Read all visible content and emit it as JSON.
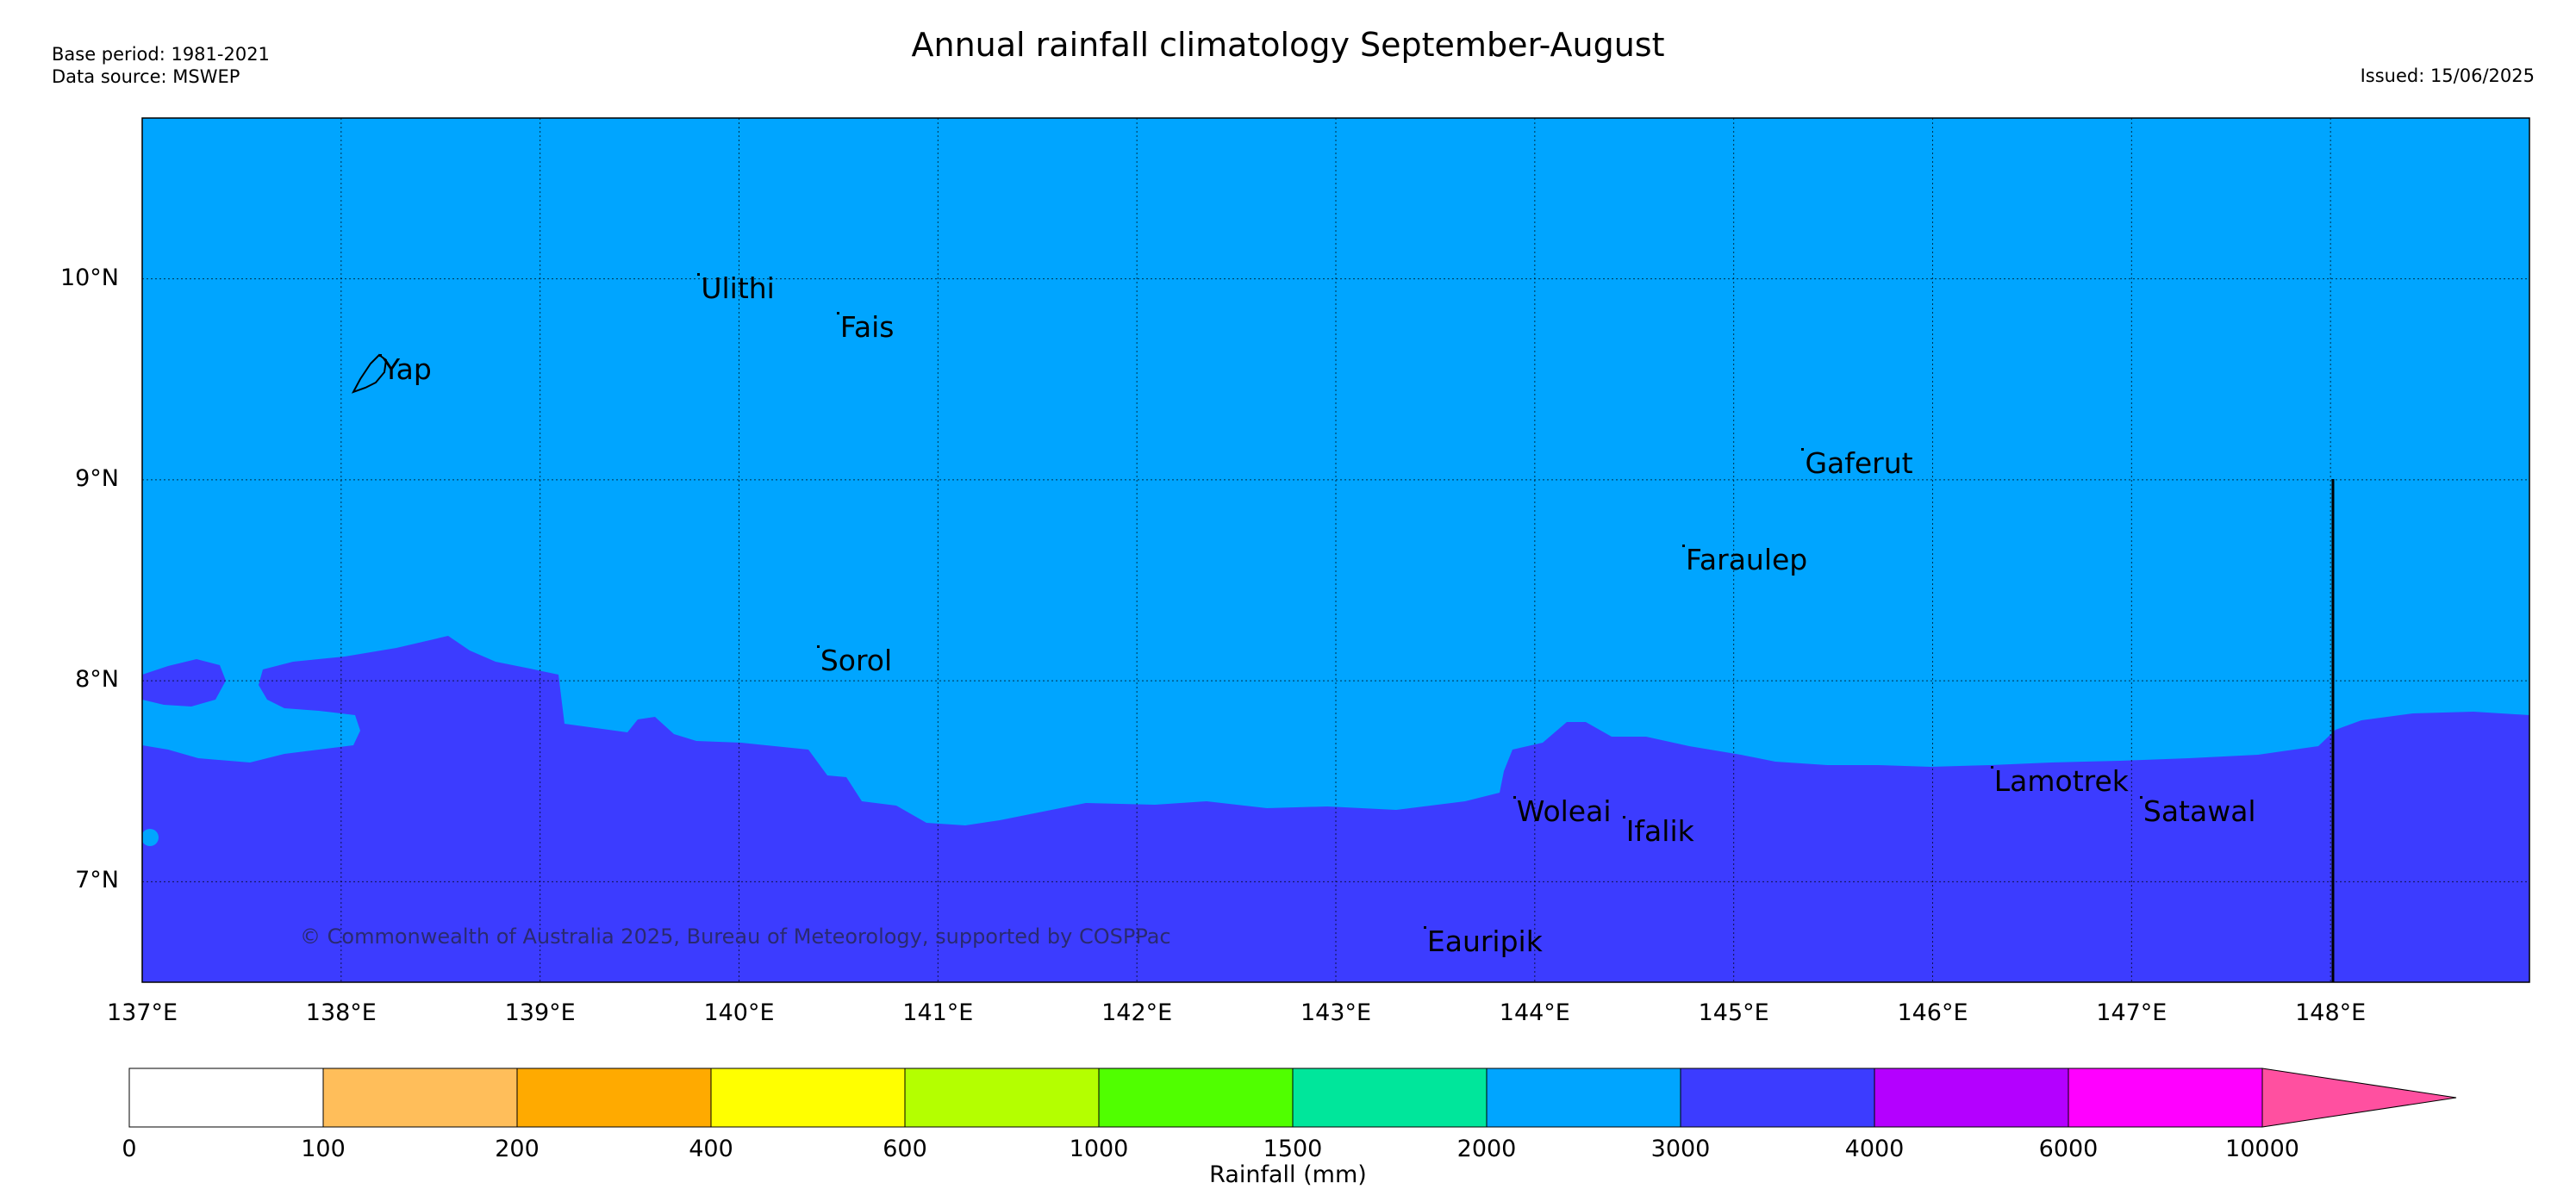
{
  "header": {
    "title": "Annual rainfall climatology September-August",
    "base_period": "Base period: 1981-2021",
    "data_source": "Data source: MSWEP",
    "issued": "Issued: 15/06/2025"
  },
  "map": {
    "lon_range": [
      137,
      149
    ],
    "lat_range": [
      6.5,
      10.8
    ],
    "x_ticks": [
      "137°E",
      "138°E",
      "139°E",
      "140°E",
      "141°E",
      "142°E",
      "143°E",
      "144°E",
      "145°E",
      "146°E",
      "147°E",
      "148°E"
    ],
    "y_ticks": [
      "10°N",
      "9°N",
      "8°N",
      "7°N"
    ],
    "grid": true,
    "places": [
      {
        "name": "Yap",
        "lon": 138.2,
        "lat": 9.55
      },
      {
        "name": "Ulithi",
        "lon": 139.8,
        "lat": 9.95
      },
      {
        "name": "Fais",
        "lon": 140.5,
        "lat": 9.76
      },
      {
        "name": "Gaferut",
        "lon": 145.35,
        "lat": 9.08
      },
      {
        "name": "Faraulep",
        "lon": 144.75,
        "lat": 8.6
      },
      {
        "name": "Sorol",
        "lon": 140.4,
        "lat": 8.1
      },
      {
        "name": "Woleai",
        "lon": 143.9,
        "lat": 7.35
      },
      {
        "name": "Ifalik",
        "lon": 144.45,
        "lat": 7.25
      },
      {
        "name": "Lamotrek",
        "lon": 146.3,
        "lat": 7.5
      },
      {
        "name": "Satawal",
        "lon": 147.05,
        "lat": 7.35
      },
      {
        "name": "Eauripik",
        "lon": 143.45,
        "lat": 6.7
      }
    ],
    "copyright": "© Commonwealth of Australia 2025, Bureau of Meteorology, supported by COSPPac",
    "colors": {
      "light_band": "#00a5ff",
      "dark_band": "#3c3cff"
    }
  },
  "colorbar": {
    "label": "Rainfall (mm)",
    "ticks": [
      "0",
      "100",
      "200",
      "400",
      "600",
      "1000",
      "1500",
      "2000",
      "3000",
      "4000",
      "6000",
      "10000"
    ],
    "colors": [
      "#ffffff",
      "#ffbe5a",
      "#ffaa00",
      "#ffff00",
      "#b4ff00",
      "#50ff00",
      "#00e69b",
      "#00a5ff",
      "#3c3cff",
      "#b400ff",
      "#ff00ff",
      "#ff50a0"
    ],
    "extend": "max"
  }
}
